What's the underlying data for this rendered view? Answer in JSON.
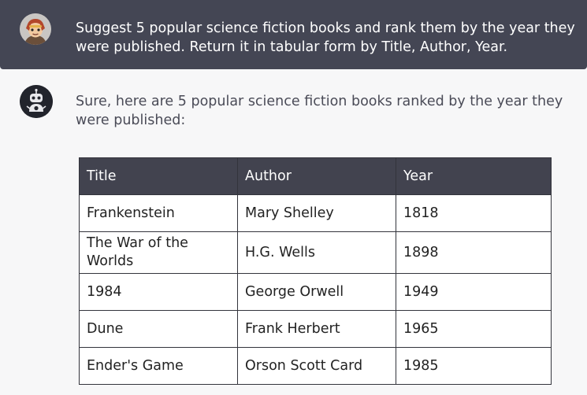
{
  "conversation": {
    "user": {
      "avatar_icon": "cartoon-person-avatar-icon",
      "message": "Suggest 5 popular science fiction books and rank them by the year they were published. Return it in tabular form by Title, Author, Year."
    },
    "assistant": {
      "avatar_icon": "robot-avatar-icon",
      "message": "Sure, here are 5 popular science fiction books ranked by the year they were published:",
      "table": {
        "headers": [
          "Title",
          "Author",
          "Year"
        ],
        "rows": [
          [
            "Frankenstein",
            "Mary Shelley",
            "1818"
          ],
          [
            "The War of the Worlds",
            "H.G. Wells",
            "1898"
          ],
          [
            "1984",
            "George Orwell",
            "1949"
          ],
          [
            "Dune",
            "Frank Herbert",
            "1965"
          ],
          [
            "Ender's Game",
            "Orson Scott Card",
            "1985"
          ]
        ]
      }
    }
  },
  "colors": {
    "user_bg": "#444654",
    "page_bg": "#f7f7f8",
    "table_header_bg": "#42434f"
  }
}
